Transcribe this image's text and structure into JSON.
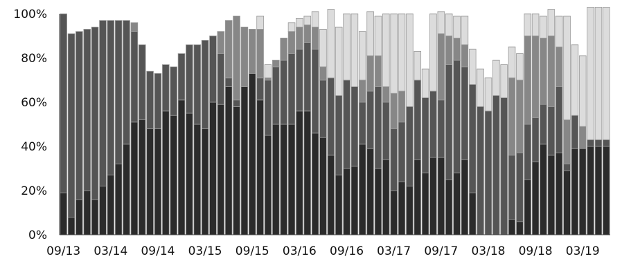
{
  "chart_data": {
    "type": "bar",
    "stacked": "percent",
    "grid": false,
    "legend": "none",
    "ylim": [
      0,
      100
    ],
    "y_ticks": [
      "0%",
      "20%",
      "40%",
      "60%",
      "80%",
      "100%"
    ],
    "x_ticks": [
      {
        "index": 0,
        "label": "09/13"
      },
      {
        "index": 6,
        "label": "03/14"
      },
      {
        "index": 12,
        "label": "09/14"
      },
      {
        "index": 18,
        "label": "03/15"
      },
      {
        "index": 24,
        "label": "09/15"
      },
      {
        "index": 30,
        "label": "03/16"
      },
      {
        "index": 36,
        "label": "09/16"
      },
      {
        "index": 42,
        "label": "03/17"
      },
      {
        "index": 48,
        "label": "09/17"
      },
      {
        "index": 54,
        "label": "03/18"
      },
      {
        "index": 60,
        "label": "09/18"
      },
      {
        "index": 66,
        "label": "03/19"
      }
    ],
    "series": [
      {
        "color": "#2b2b2b",
        "values": [
          19,
          8,
          16,
          20,
          16,
          22,
          27,
          32,
          41,
          51,
          52,
          48,
          48,
          56,
          54,
          61,
          55,
          50,
          48,
          60,
          59,
          67,
          58,
          67,
          73,
          61,
          45,
          50,
          50,
          50,
          56,
          56,
          46,
          44,
          36,
          27,
          30,
          31,
          41,
          39,
          30,
          34,
          20,
          24,
          22,
          34,
          28,
          35,
          35,
          25,
          28,
          34,
          19,
          0,
          0,
          0,
          0,
          7,
          6,
          25,
          33,
          41,
          36,
          37,
          29,
          39,
          39,
          40,
          40,
          40
        ]
      },
      {
        "color": "#555555",
        "values": [
          81,
          83,
          76,
          73,
          78,
          75,
          70,
          65,
          56,
          41,
          34,
          26,
          25,
          21,
          22,
          21,
          31,
          36,
          40,
          30,
          23,
          4,
          3,
          0,
          0,
          10,
          25,
          26,
          29,
          32,
          28,
          31,
          38,
          26,
          35,
          36,
          40,
          36,
          19,
          26,
          37,
          26,
          28,
          27,
          36,
          36,
          34,
          30,
          26,
          52,
          51,
          42,
          49,
          58,
          56,
          63,
          62,
          29,
          31,
          25,
          20,
          18,
          22,
          30,
          3,
          15,
          0,
          3,
          3,
          3
        ]
      },
      {
        "color": "#878787",
        "values": [
          0,
          0,
          0,
          0,
          0,
          0,
          0,
          0,
          0,
          4,
          0,
          0,
          0,
          0,
          0,
          0,
          0,
          0,
          0,
          0,
          10,
          26,
          38,
          27,
          20,
          22,
          1,
          3,
          10,
          10,
          10,
          8,
          10,
          6,
          0,
          0,
          0,
          0,
          10,
          16,
          14,
          7,
          16,
          14,
          0,
          0,
          0,
          0,
          30,
          13,
          10,
          10,
          0,
          0,
          0,
          0,
          0,
          35,
          33,
          40,
          37,
          30,
          32,
          18,
          20,
          0,
          10,
          0,
          0,
          0
        ]
      },
      {
        "color": "#dcdcdc",
        "values": [
          0,
          0,
          0,
          0,
          0,
          0,
          0,
          0,
          0,
          0,
          0,
          0,
          0,
          0,
          0,
          0,
          0,
          0,
          0,
          0,
          0,
          0,
          0,
          0,
          0,
          6,
          6,
          0,
          0,
          4,
          4,
          4,
          7,
          17,
          31,
          31,
          30,
          33,
          22,
          20,
          18,
          33,
          36,
          35,
          42,
          13,
          13,
          35,
          10,
          10,
          10,
          13,
          16,
          17,
          15,
          16,
          15,
          14,
          12,
          10,
          10,
          10,
          12,
          14,
          47,
          32,
          32,
          60,
          60,
          60
        ]
      }
    ]
  }
}
